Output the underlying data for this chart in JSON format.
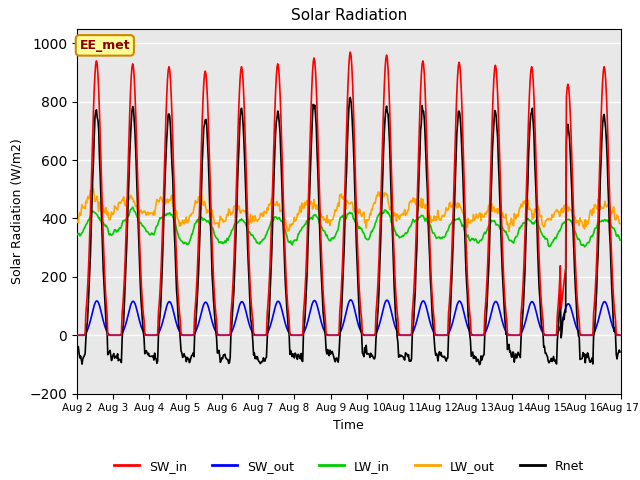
{
  "title": "Solar Radiation",
  "xlabel": "Time",
  "ylabel": "Solar Radiation (W/m2)",
  "ylim": [
    -200,
    1050
  ],
  "yticks": [
    -200,
    0,
    200,
    400,
    600,
    800,
    1000
  ],
  "n_days": 15,
  "colors": {
    "SW_in": "#ff0000",
    "SW_out": "#0000ff",
    "LW_in": "#00cc00",
    "LW_out": "#ffa500",
    "Rnet": "#000000"
  },
  "bg_color": "#e8e8e8",
  "grid_color": "#ffffff",
  "annotation_text": "EE_met",
  "annotation_bg": "#ffff99",
  "annotation_border": "#cc8800",
  "tick_labels": [
    "Aug 2",
    "Aug 3",
    "Aug 4",
    "Aug 5",
    "Aug 6",
    "Aug 7",
    "Aug 8",
    "Aug 9",
    "Aug 10",
    "Aug 11",
    "Aug 12",
    "Aug 13",
    "Aug 14",
    "Aug 15",
    "Aug 16",
    "Aug 17"
  ]
}
